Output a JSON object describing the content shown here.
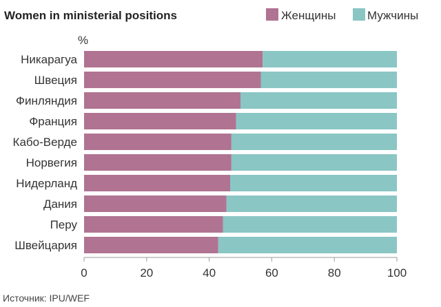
{
  "chart_data": {
    "type": "bar",
    "orientation": "horizontal",
    "stacked": true,
    "title": "Women in ministerial positions",
    "unit_label": "%",
    "source": "Источник: IPU/WEF",
    "categories": [
      "Никарагуа",
      "Швеция",
      "Финляндия",
      "Франция",
      "Кабо-Верде",
      "Норвегия",
      "Нидерланд",
      "Дания",
      "Перу",
      "Швейцария"
    ],
    "series": [
      {
        "name": "Женщины",
        "color": "#b07391",
        "values": [
          57.1,
          56.5,
          50.0,
          48.6,
          47.1,
          47.1,
          46.7,
          45.5,
          44.4,
          42.9
        ]
      },
      {
        "name": "Мужчины",
        "color": "#8ac6c4",
        "values": [
          42.9,
          43.5,
          50.0,
          51.4,
          52.9,
          52.9,
          53.3,
          54.5,
          55.6,
          57.1
        ]
      }
    ],
    "xlim": [
      0,
      100
    ],
    "xticks": [
      "0",
      "20",
      "40",
      "60",
      "80",
      "100"
    ],
    "xtick_values": [
      0,
      20,
      40,
      60,
      80,
      100
    ],
    "legend_position": "top-right",
    "grid": false
  }
}
